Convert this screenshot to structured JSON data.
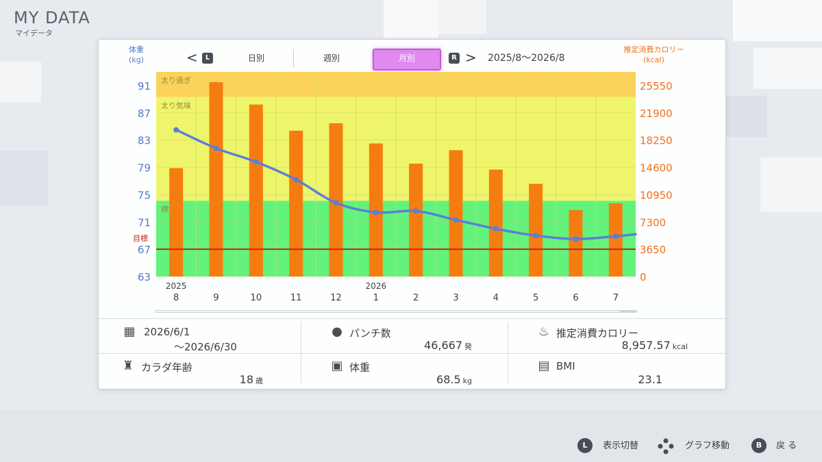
{
  "app": {
    "title": "MY DATA",
    "subtitle": "マイデータ"
  },
  "axis": {
    "left_label_1": "体重",
    "left_label_2": "(kg)",
    "right_label_1": "推定消費カロリー",
    "right_label_2": "(kcal)"
  },
  "nav": {
    "prev_arrow": "<",
    "prev_button": "L",
    "tabs": [
      {
        "label": "日別"
      },
      {
        "label": "週別"
      },
      {
        "label": "月別"
      }
    ],
    "next_button": "R",
    "next_arrow": ">",
    "date_range": "2025/8〜2026/8"
  },
  "chart_data": {
    "type": "bar",
    "categories": [
      "8",
      "9",
      "10",
      "11",
      "12",
      "1",
      "2",
      "3",
      "4",
      "5",
      "6",
      "7"
    ],
    "year_labels": [
      {
        "index": 0,
        "label": "2025"
      },
      {
        "index": 5,
        "label": "2026"
      }
    ],
    "bar_series": {
      "axis": "right",
      "values": [
        14500,
        26000,
        23000,
        19500,
        20500,
        17800,
        15100,
        16900,
        14300,
        12400,
        8900,
        9800
      ],
      "color": "#f57d10"
    },
    "line_series": {
      "axis": "left",
      "values": [
        84.5,
        81.8,
        79.8,
        77.2,
        73.8,
        72.4,
        72.6,
        71.3,
        70.0,
        69.0,
        68.5,
        68.9
      ],
      "color": "#5b7fd6",
      "extends_right_to": 69.2
    },
    "left_axis": {
      "min": 63,
      "max": 93,
      "ticks": [
        91,
        87,
        83,
        79,
        75,
        71,
        67,
        63
      ]
    },
    "right_axis": {
      "ticks": [
        25550,
        21900,
        18250,
        14600,
        10950,
        7300,
        3650,
        0
      ]
    },
    "zones": [
      {
        "label": "太り過ぎ",
        "from": 89.3,
        "to": 93,
        "color": "#fbd35a"
      },
      {
        "label": "太り気味",
        "from": 74.1,
        "to": 89.3,
        "color": "#eef56b"
      },
      {
        "label": "標準",
        "from": 63,
        "to": 74.1,
        "color": "#63f27c"
      }
    ],
    "target": {
      "label": "目標",
      "value": 67,
      "color": "#c8231a"
    }
  },
  "stats": {
    "period": {
      "line1": "2026/6/1",
      "line2": "〜2026/6/30",
      "icon": "calendar-icon"
    },
    "punches": {
      "label": "パンチ数",
      "value": "46,667",
      "unit": "発",
      "icon": "glove-icon"
    },
    "calories": {
      "label": "推定消費カロリー",
      "value": "8,957.57",
      "unit": "kcal",
      "icon": "flame-icon"
    },
    "body_age": {
      "label": "カラダ年齢",
      "value": "18",
      "unit": "歳",
      "icon": "muscle-icon"
    },
    "weight": {
      "label": "体重",
      "value": "68.5",
      "unit": "kg",
      "icon": "scale-icon"
    },
    "bmi": {
      "label": "BMI",
      "value": "23.1",
      "icon": "calculator-icon"
    }
  },
  "footer": {
    "toggle": {
      "button": "L",
      "label": "表示切替"
    },
    "move": {
      "label": "グラフ移動"
    },
    "back": {
      "button": "B",
      "label": "戻 る"
    }
  }
}
